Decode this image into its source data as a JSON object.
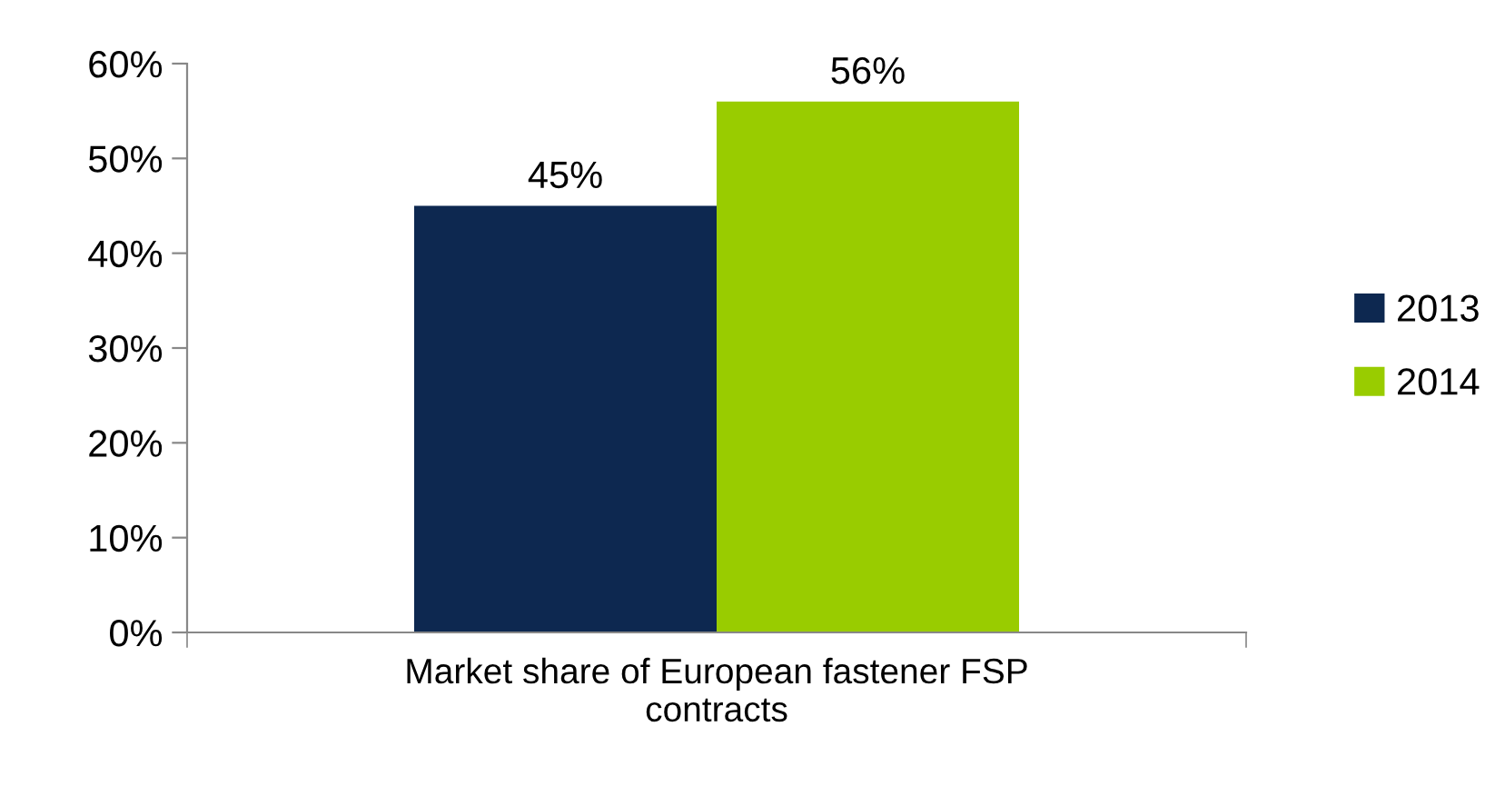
{
  "chart_data": {
    "type": "bar",
    "categories": [
      "Market share of European fastener FSP\ncontracts"
    ],
    "series": [
      {
        "name": "2013",
        "color": "#0d2850",
        "values": [
          45
        ],
        "value_labels": [
          "45%"
        ]
      },
      {
        "name": "2014",
        "color": "#99cc00",
        "values": [
          56
        ],
        "value_labels": [
          "56%"
        ]
      }
    ],
    "ylim": [
      0,
      60
    ],
    "yticks": [
      {
        "value": 0,
        "label": "0%"
      },
      {
        "value": 10,
        "label": "10%"
      },
      {
        "value": 20,
        "label": "20%"
      },
      {
        "value": 30,
        "label": "30%"
      },
      {
        "value": 40,
        "label": "40%"
      },
      {
        "value": 50,
        "label": "50%"
      },
      {
        "value": 60,
        "label": "60%"
      }
    ],
    "grid": false,
    "legend": "right"
  }
}
